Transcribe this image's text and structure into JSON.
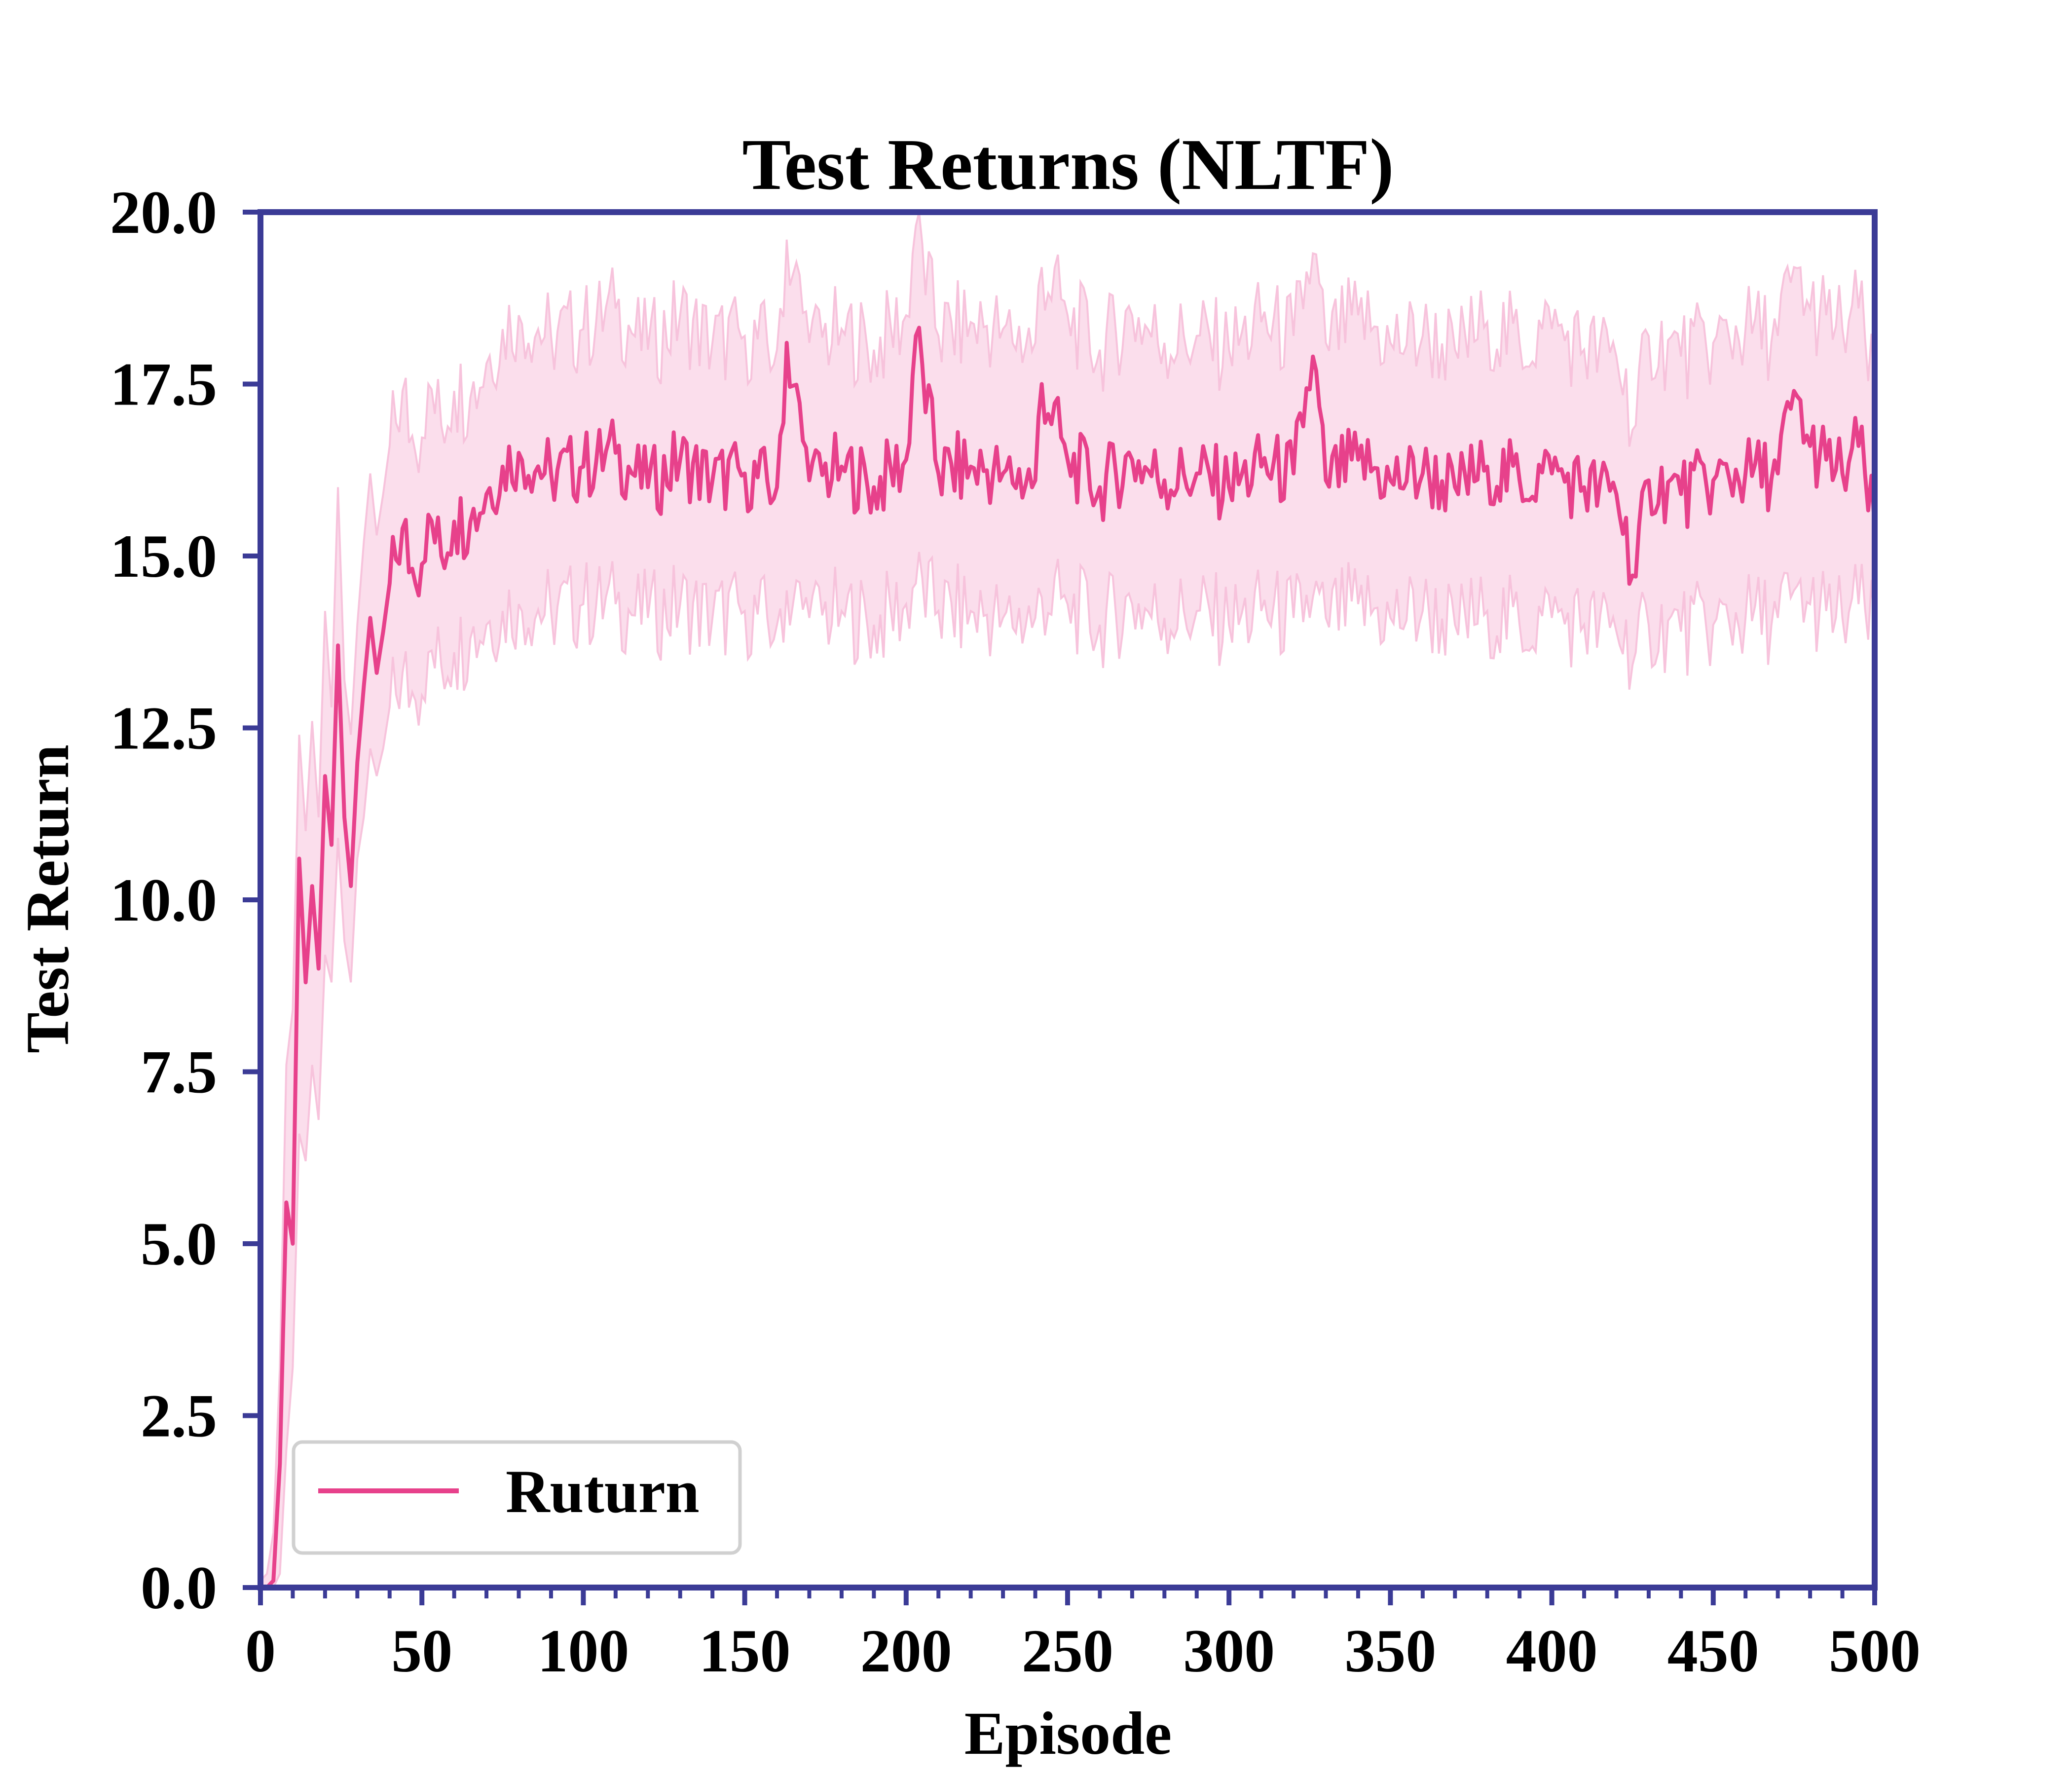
{
  "chart_data": {
    "type": "line",
    "title": "Test Returns (NLTF)",
    "xlabel": "Episode",
    "ylabel": "Test Return",
    "xlim": [
      0,
      500
    ],
    "ylim": [
      0,
      20
    ],
    "x_ticks": [
      0,
      50,
      100,
      150,
      200,
      250,
      300,
      350,
      400,
      450,
      500
    ],
    "x_tick_labels": [
      "0",
      "50",
      "100",
      "150",
      "200",
      "250",
      "300",
      "350",
      "400",
      "450",
      "500"
    ],
    "y_ticks": [
      0,
      2.5,
      5,
      7.5,
      10,
      12.5,
      15,
      17.5,
      20
    ],
    "y_tick_labels": [
      "0.0",
      "2.5",
      "5.0",
      "7.5",
      "10.0",
      "12.5",
      "15.0",
      "17.5",
      "20.0"
    ],
    "grid": false,
    "legend": {
      "position": "bottom-left"
    },
    "series": [
      {
        "name": "Ruturn",
        "color": "#e7418b",
        "band_color": "#f7c3dc",
        "band": "shaded min-max range around the mean",
        "x": [
          0,
          2,
          4,
          6,
          8,
          10,
          12,
          14,
          16,
          18,
          20,
          22,
          24,
          26,
          28,
          30,
          32,
          34,
          36,
          38,
          40,
          44,
          48,
          52,
          56,
          60,
          65,
          70,
          75,
          80,
          90,
          100,
          110,
          120,
          130,
          140,
          150,
          160,
          163,
          170,
          180,
          190,
          200,
          203,
          210,
          220,
          230,
          240,
          242,
          250,
          260,
          270,
          280,
          290,
          300,
          310,
          320,
          326,
          330,
          340,
          350,
          360,
          370,
          380,
          390,
          400,
          410,
          420,
          426,
          430,
          440,
          450,
          460,
          470,
          475,
          480,
          485,
          490,
          495,
          500
        ],
        "y": [
          0.0,
          0.0,
          0.1,
          1.8,
          5.6,
          5.0,
          10.6,
          8.8,
          10.2,
          9.0,
          11.8,
          10.8,
          13.7,
          11.2,
          10.2,
          12.0,
          13.1,
          14.1,
          13.3,
          13.9,
          14.6,
          15.4,
          14.6,
          15.6,
          15.0,
          15.5,
          15.5,
          15.9,
          16.3,
          16.5,
          16.2,
          16.3,
          16.5,
          16.0,
          16.4,
          16.1,
          16.2,
          16.0,
          18.1,
          16.1,
          16.3,
          16.0,
          16.4,
          18.2,
          16.2,
          16.3,
          16.2,
          16.1,
          17.5,
          16.4,
          16.0,
          16.4,
          16.1,
          16.2,
          16.0,
          16.3,
          16.2,
          17.9,
          16.1,
          16.4,
          16.1,
          16.2,
          16.0,
          16.3,
          16.1,
          16.2,
          16.0,
          15.9,
          14.7,
          16.1,
          15.9,
          16.1,
          16.2,
          16.2,
          17.4,
          16.6,
          16.4,
          16.2,
          16.6,
          15.4
        ],
        "lower": [
          0.0,
          0.0,
          0.0,
          0.2,
          2.0,
          3.2,
          6.6,
          6.2,
          7.6,
          6.8,
          9.2,
          8.8,
          10.9,
          9.4,
          8.8,
          10.6,
          11.2,
          12.2,
          11.8,
          12.2,
          12.8,
          13.3,
          12.9,
          13.6,
          13.4,
          13.6,
          13.8,
          14.0,
          14.2,
          14.3,
          14.2,
          14.3,
          14.3,
          14.1,
          14.3,
          14.1,
          14.2,
          14.0,
          14.5,
          14.1,
          14.2,
          14.0,
          14.3,
          14.6,
          14.2,
          14.2,
          14.1,
          14.1,
          14.4,
          14.3,
          14.0,
          14.3,
          14.1,
          14.2,
          14.0,
          14.2,
          14.1,
          14.4,
          14.1,
          14.3,
          14.1,
          14.2,
          14.0,
          14.2,
          14.0,
          14.1,
          14.0,
          13.9,
          13.6,
          14.0,
          13.9,
          14.0,
          14.1,
          14.1,
          14.5,
          14.3,
          14.2,
          14.1,
          14.3,
          13.9
        ],
        "upper": [
          0.1,
          0.2,
          0.8,
          3.2,
          7.6,
          8.4,
          12.4,
          11.0,
          12.6,
          11.2,
          14.2,
          12.8,
          16.0,
          13.2,
          12.4,
          14.0,
          15.2,
          16.2,
          15.3,
          15.9,
          16.6,
          17.4,
          16.5,
          17.5,
          16.9,
          17.4,
          17.3,
          17.8,
          18.3,
          18.5,
          18.2,
          18.3,
          18.6,
          18.0,
          18.5,
          18.1,
          18.2,
          18.0,
          19.6,
          18.1,
          18.3,
          18.0,
          18.5,
          19.8,
          18.2,
          18.4,
          18.3,
          18.1,
          19.2,
          18.5,
          18.0,
          18.5,
          18.1,
          18.2,
          18.0,
          18.4,
          18.2,
          19.4,
          18.1,
          18.5,
          18.1,
          18.2,
          18.0,
          18.4,
          18.1,
          18.3,
          18.0,
          17.9,
          16.9,
          18.2,
          17.9,
          18.1,
          18.3,
          18.2,
          19.2,
          18.6,
          18.5,
          18.3,
          18.6,
          17.3
        ]
      }
    ]
  }
}
